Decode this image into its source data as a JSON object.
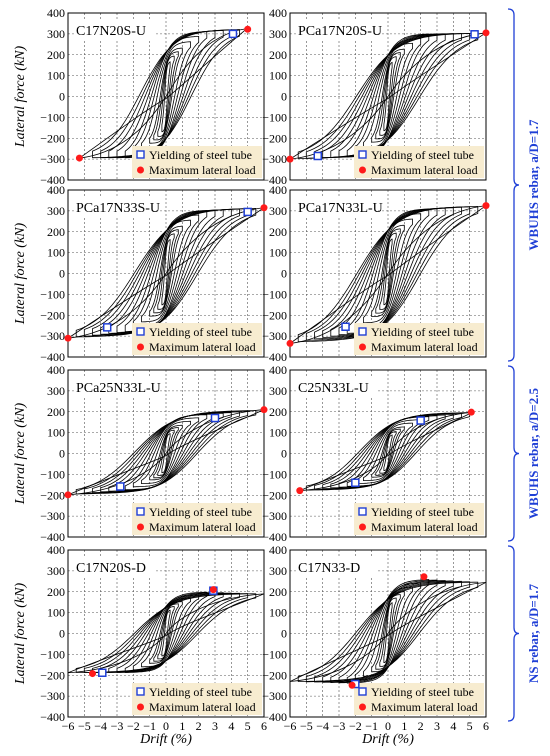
{
  "figure": {
    "ylabel": "Lateral force (kN)",
    "xlabel": "Drift (%)",
    "legend": {
      "yield_label": "Yielding of steel tube",
      "max_label": "Maximum lateral load",
      "yield_color": "#1f3fd6",
      "max_color": "#ff1a1a",
      "background": "#f7ecd0"
    },
    "groups": [
      {
        "label": "WBUHS rebar, a/D=1.7",
        "rows": [
          0,
          1
        ]
      },
      {
        "label": "WBUHS rebar, a/D=2.5",
        "rows": [
          2
        ]
      },
      {
        "label": "NS rebar, a/D=1.7",
        "rows": [
          3
        ]
      }
    ],
    "group_color": "#1f3fd6"
  },
  "chart_data": [
    {
      "type": "line",
      "title": "C17N20S-U",
      "xlabel": "",
      "ylabel": "Lateral force (kN)",
      "xlim": [
        -6,
        6
      ],
      "ylim": [
        -400,
        400
      ],
      "xticks": [
        "−6",
        "−5",
        "−4",
        "−3",
        "−2",
        "−1",
        "0",
        "1",
        "2",
        "3",
        "4",
        "5",
        "6"
      ],
      "yticks": [
        "400",
        "300",
        "200",
        "100",
        "0",
        "−100",
        "−200",
        "−300",
        "−400"
      ],
      "grid": true,
      "legend_position": "bottom-right",
      "envelope": {
        "pos": [
          300,
          325
        ],
        "neg": [
          -295,
          -295
        ],
        "pos_drift": 4.95,
        "neg_drift": -5.3
      },
      "yield_points": [
        {
          "x": 4.1,
          "y": 300
        }
      ],
      "max_points": [
        {
          "x": 5.0,
          "y": 322
        },
        {
          "x": -5.3,
          "y": -295
        }
      ]
    },
    {
      "type": "line",
      "title": "PCa17N20S-U",
      "xlabel": "",
      "ylabel": "",
      "xlim": [
        -6,
        6
      ],
      "ylim": [
        -400,
        400
      ],
      "xticks": [
        "−6",
        "−5",
        "−4",
        "−3",
        "−2",
        "−1",
        "0",
        "1",
        "2",
        "3",
        "4",
        "5",
        "6"
      ],
      "yticks": [
        "400",
        "300",
        "200",
        "100",
        "0",
        "−100",
        "−200",
        "−300",
        "−400"
      ],
      "grid": true,
      "legend_position": "bottom-right",
      "envelope": {
        "pos": [
          298,
          305
        ],
        "neg": [
          -285,
          -300
        ],
        "pos_drift": 6.0,
        "neg_drift": -6.0
      },
      "yield_points": [
        {
          "x": 5.3,
          "y": 298
        },
        {
          "x": -4.3,
          "y": -285
        }
      ],
      "max_points": [
        {
          "x": 6.0,
          "y": 305
        },
        {
          "x": -6.0,
          "y": -300
        }
      ]
    },
    {
      "type": "line",
      "title": "PCa17N33S-U",
      "xlabel": "",
      "ylabel": "Lateral force (kN)",
      "xlim": [
        -6,
        6
      ],
      "ylim": [
        -400,
        400
      ],
      "xticks": [
        "−6",
        "−5",
        "−4",
        "−3",
        "−2",
        "−1",
        "0",
        "1",
        "2",
        "3",
        "4",
        "5",
        "6"
      ],
      "yticks": [
        "400",
        "300",
        "200",
        "100",
        "0",
        "−100",
        "−200",
        "−300",
        "−400"
      ],
      "grid": true,
      "legend_position": "bottom-right",
      "envelope": {
        "pos": [
          295,
          315
        ],
        "neg": [
          -258,
          -310
        ],
        "pos_drift": 6.0,
        "neg_drift": -6.0
      },
      "yield_points": [
        {
          "x": 5.0,
          "y": 295
        },
        {
          "x": -3.6,
          "y": -258
        }
      ],
      "max_points": [
        {
          "x": 6.0,
          "y": 315
        },
        {
          "x": -6.0,
          "y": -310
        }
      ]
    },
    {
      "type": "line",
      "title": "PCa17N33L-U",
      "xlabel": "",
      "ylabel": "",
      "xlim": [
        -6,
        6
      ],
      "ylim": [
        -400,
        400
      ],
      "xticks": [
        "−6",
        "−5",
        "−4",
        "−3",
        "−2",
        "−1",
        "0",
        "1",
        "2",
        "3",
        "4",
        "5",
        "6"
      ],
      "yticks": [
        "400",
        "300",
        "200",
        "100",
        "0",
        "−100",
        "−200",
        "−300",
        "−400"
      ],
      "grid": true,
      "legend_position": "bottom-right",
      "envelope": {
        "pos": [
          300,
          325
        ],
        "neg": [
          -255,
          -335
        ],
        "pos_drift": 6.0,
        "neg_drift": -6.0
      },
      "yield_points": [
        {
          "x": -2.6,
          "y": -255
        }
      ],
      "max_points": [
        {
          "x": 6.0,
          "y": 325
        },
        {
          "x": -6.0,
          "y": -335
        }
      ]
    },
    {
      "type": "line",
      "title": "PCa25N33L-U",
      "xlabel": "",
      "ylabel": "Lateral force (kN)",
      "xlim": [
        -6,
        6
      ],
      "ylim": [
        -400,
        400
      ],
      "xticks": [
        "−6",
        "−5",
        "−4",
        "−3",
        "−2",
        "−1",
        "0",
        "1",
        "2",
        "3",
        "4",
        "5",
        "6"
      ],
      "yticks": [
        "400",
        "300",
        "200",
        "100",
        "0",
        "−100",
        "−200",
        "−300",
        "−400"
      ],
      "grid": true,
      "legend_position": "bottom-right",
      "envelope": {
        "pos": [
          170,
          210
        ],
        "neg": [
          -158,
          -198
        ],
        "pos_drift": 6.0,
        "neg_drift": -6.0
      },
      "yield_points": [
        {
          "x": 3.0,
          "y": 170
        },
        {
          "x": -2.8,
          "y": -158
        }
      ],
      "max_points": [
        {
          "x": 6.0,
          "y": 210
        },
        {
          "x": -6.0,
          "y": -198
        }
      ]
    },
    {
      "type": "line",
      "title": "C25N33L-U",
      "xlabel": "",
      "ylabel": "",
      "xlim": [
        -6,
        6
      ],
      "ylim": [
        -400,
        400
      ],
      "xticks": [
        "−6",
        "−5",
        "−4",
        "−3",
        "−2",
        "−1",
        "0",
        "1",
        "2",
        "3",
        "4",
        "5",
        "6"
      ],
      "yticks": [
        "400",
        "300",
        "200",
        "100",
        "0",
        "−100",
        "−200",
        "−300",
        "−400"
      ],
      "grid": true,
      "legend_position": "bottom-right",
      "envelope": {
        "pos": [
          158,
          198
        ],
        "neg": [
          -140,
          -178
        ],
        "pos_drift": 5.2,
        "neg_drift": -5.4
      },
      "yield_points": [
        {
          "x": 2.0,
          "y": 158
        },
        {
          "x": -2.0,
          "y": -140
        }
      ],
      "max_points": [
        {
          "x": 5.1,
          "y": 198
        },
        {
          "x": -5.4,
          "y": -178
        }
      ]
    },
    {
      "type": "line",
      "title": "C17N20S-D",
      "xlabel": "Drift (%)",
      "ylabel": "Lateral force (kN)",
      "xlim": [
        -6,
        6
      ],
      "ylim": [
        -400,
        400
      ],
      "xticks": [
        "−6",
        "−5",
        "−4",
        "−3",
        "−2",
        "−1",
        "0",
        "1",
        "2",
        "3",
        "4",
        "5",
        "6"
      ],
      "yticks": [
        "400",
        "300",
        "200",
        "100",
        "0",
        "−100",
        "−200",
        "−300",
        "−400"
      ],
      "grid": true,
      "legend_position": "bottom-right",
      "envelope": {
        "pos": [
          205,
          190
        ],
        "neg": [
          -188,
          -188
        ],
        "pos_drift": 6.0,
        "neg_drift": -6.0
      },
      "yield_points": [
        {
          "x": 2.9,
          "y": 205
        },
        {
          "x": -3.9,
          "y": -188
        }
      ],
      "max_points": [
        {
          "x": 2.9,
          "y": 210
        },
        {
          "x": -4.5,
          "y": -192
        }
      ]
    },
    {
      "type": "line",
      "title": "C17N33-D",
      "xlabel": "Drift (%)",
      "ylabel": "",
      "xlim": [
        -6,
        6
      ],
      "ylim": [
        -400,
        400
      ],
      "xticks": [
        "−6",
        "−5",
        "−4",
        "−3",
        "−2",
        "−1",
        "0",
        "1",
        "2",
        "3",
        "4",
        "5",
        "6"
      ],
      "yticks": [
        "400",
        "300",
        "200",
        "100",
        "0",
        "−100",
        "−200",
        "−300",
        "−400"
      ],
      "grid": true,
      "legend_position": "bottom-right",
      "envelope": {
        "pos": [
          270,
          245
        ],
        "neg": [
          -245,
          -230
        ],
        "pos_drift": 6.0,
        "neg_drift": -6.0
      },
      "yield_points": [
        {
          "x": -2.0,
          "y": -242
        }
      ],
      "max_points": [
        {
          "x": 2.2,
          "y": 272
        },
        {
          "x": -2.2,
          "y": -248
        }
      ]
    }
  ]
}
